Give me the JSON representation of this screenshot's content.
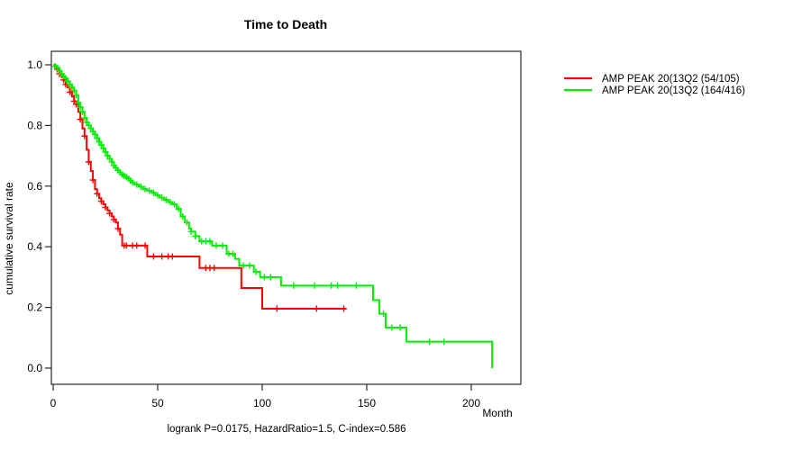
{
  "title": "Time to Death",
  "x_axis": {
    "label": "Month",
    "tick_labels": [
      "0",
      "50",
      "100",
      "150",
      "200"
    ]
  },
  "y_axis": {
    "label": "cumulative survival rate",
    "tick_labels": [
      "0.0",
      "0.2",
      "0.4",
      "0.6",
      "0.8",
      "1.0"
    ]
  },
  "footer": "logrank P=0.0175, HazardRatio=1.5, C-index=0.586",
  "legend": {
    "items": [
      {
        "label": "AMP PEAK 20(13Q2 (54/105)",
        "color": "#ff0000"
      },
      {
        "label": "AMP PEAK 20(13Q2 (164/416)",
        "color": "#00ee00"
      }
    ]
  },
  "chart_data": {
    "type": "line",
    "subtype": "kaplan-meier-step-curves",
    "title": "Time to Death",
    "xlabel": "Month",
    "ylabel": "cumulative survival rate",
    "xlim": [
      0,
      222
    ],
    "ylim": [
      0,
      1.0
    ],
    "x_ticks": [
      0,
      50,
      100,
      150,
      200
    ],
    "y_ticks": [
      0.0,
      0.2,
      0.4,
      0.6,
      0.8,
      1.0
    ],
    "grid": false,
    "legend_position": "right-outside",
    "annotation": "logrank P=0.0175, HazardRatio=1.5, C-index=0.586",
    "series": [
      {
        "name": "AMP PEAK 20(13Q2 (54/105)",
        "color": "#ff0000",
        "events_total": "54/105",
        "end_month": 140,
        "drops_to_zero": false,
        "steps": [
          [
            0,
            1.0
          ],
          [
            1,
            0.99
          ],
          [
            2,
            0.985
          ],
          [
            3,
            0.97
          ],
          [
            4,
            0.96
          ],
          [
            5,
            0.95
          ],
          [
            6,
            0.935
          ],
          [
            7,
            0.925
          ],
          [
            8,
            0.91
          ],
          [
            9,
            0.895
          ],
          [
            10,
            0.88
          ],
          [
            11,
            0.87
          ],
          [
            12,
            0.845
          ],
          [
            13,
            0.82
          ],
          [
            14,
            0.79
          ],
          [
            15,
            0.765
          ],
          [
            16,
            0.72
          ],
          [
            17,
            0.68
          ],
          [
            18,
            0.65
          ],
          [
            19,
            0.62
          ],
          [
            20,
            0.59
          ],
          [
            21,
            0.575
          ],
          [
            22,
            0.56
          ],
          [
            23,
            0.55
          ],
          [
            24,
            0.54
          ],
          [
            25,
            0.53
          ],
          [
            26,
            0.52
          ],
          [
            27,
            0.51
          ],
          [
            28,
            0.5
          ],
          [
            29,
            0.49
          ],
          [
            30,
            0.48
          ],
          [
            31,
            0.46
          ],
          [
            32,
            0.44
          ],
          [
            33,
            0.404
          ],
          [
            45,
            0.368
          ],
          [
            70,
            0.33
          ],
          [
            90,
            0.264
          ],
          [
            100,
            0.196
          ]
        ],
        "censor_months": [
          2,
          3,
          5,
          6,
          8,
          10,
          11,
          13,
          15,
          17,
          19,
          21,
          23,
          25,
          27,
          29,
          31,
          34,
          35,
          38,
          40,
          44,
          48,
          52,
          55,
          57,
          73,
          75,
          77,
          107,
          126,
          139
        ]
      },
      {
        "name": "AMP PEAK 20(13Q2 (164/416)",
        "color": "#00ee00",
        "events_total": "164/416",
        "end_month": 210,
        "drops_to_zero": true,
        "steps": [
          [
            0,
            1.0
          ],
          [
            1,
            0.995
          ],
          [
            2,
            0.99
          ],
          [
            3,
            0.98
          ],
          [
            4,
            0.97
          ],
          [
            5,
            0.962
          ],
          [
            6,
            0.955
          ],
          [
            7,
            0.945
          ],
          [
            8,
            0.935
          ],
          [
            9,
            0.925
          ],
          [
            10,
            0.915
          ],
          [
            11,
            0.9
          ],
          [
            12,
            0.875
          ],
          [
            13,
            0.86
          ],
          [
            14,
            0.845
          ],
          [
            15,
            0.825
          ],
          [
            16,
            0.81
          ],
          [
            17,
            0.8
          ],
          [
            18,
            0.79
          ],
          [
            19,
            0.78
          ],
          [
            20,
            0.77
          ],
          [
            21,
            0.758
          ],
          [
            22,
            0.746
          ],
          [
            23,
            0.735
          ],
          [
            24,
            0.724
          ],
          [
            25,
            0.712
          ],
          [
            26,
            0.7
          ],
          [
            27,
            0.69
          ],
          [
            28,
            0.68
          ],
          [
            29,
            0.668
          ],
          [
            30,
            0.66
          ],
          [
            31,
            0.652
          ],
          [
            32,
            0.645
          ],
          [
            33,
            0.638
          ],
          [
            34,
            0.634
          ],
          [
            35,
            0.63
          ],
          [
            36,
            0.625
          ],
          [
            37,
            0.618
          ],
          [
            38,
            0.612
          ],
          [
            39,
            0.605
          ],
          [
            41,
            0.598
          ],
          [
            43,
            0.59
          ],
          [
            45,
            0.585
          ],
          [
            47,
            0.578
          ],
          [
            49,
            0.57
          ],
          [
            51,
            0.562
          ],
          [
            53,
            0.555
          ],
          [
            55,
            0.547
          ],
          [
            57,
            0.54
          ],
          [
            59,
            0.525
          ],
          [
            61,
            0.5
          ],
          [
            63,
            0.48
          ],
          [
            65,
            0.46
          ],
          [
            66,
            0.45
          ],
          [
            68,
            0.435
          ],
          [
            70,
            0.418
          ],
          [
            76,
            0.404
          ],
          [
            83,
            0.377
          ],
          [
            87,
            0.36
          ],
          [
            89,
            0.338
          ],
          [
            96,
            0.318
          ],
          [
            99,
            0.3
          ],
          [
            109,
            0.272
          ],
          [
            153,
            0.224
          ],
          [
            156,
            0.179
          ],
          [
            159,
            0.134
          ],
          [
            169,
            0.087
          ]
        ],
        "censor_months": [
          1,
          2,
          3,
          4,
          5,
          6,
          7,
          8,
          9,
          10,
          11,
          12,
          13,
          14,
          15,
          16,
          17,
          18,
          19,
          20,
          21,
          22,
          23,
          24,
          25,
          26,
          27,
          28,
          29,
          30,
          31,
          32,
          33,
          34,
          35,
          36,
          37,
          38,
          40,
          42,
          44,
          46,
          48,
          50,
          52,
          54,
          56,
          58,
          60,
          62,
          64,
          66,
          68,
          71,
          73,
          75,
          78,
          81,
          84,
          86,
          91,
          94,
          97,
          101,
          104,
          115,
          125,
          133,
          136,
          145,
          158,
          162,
          166,
          180,
          187
        ]
      }
    ]
  }
}
